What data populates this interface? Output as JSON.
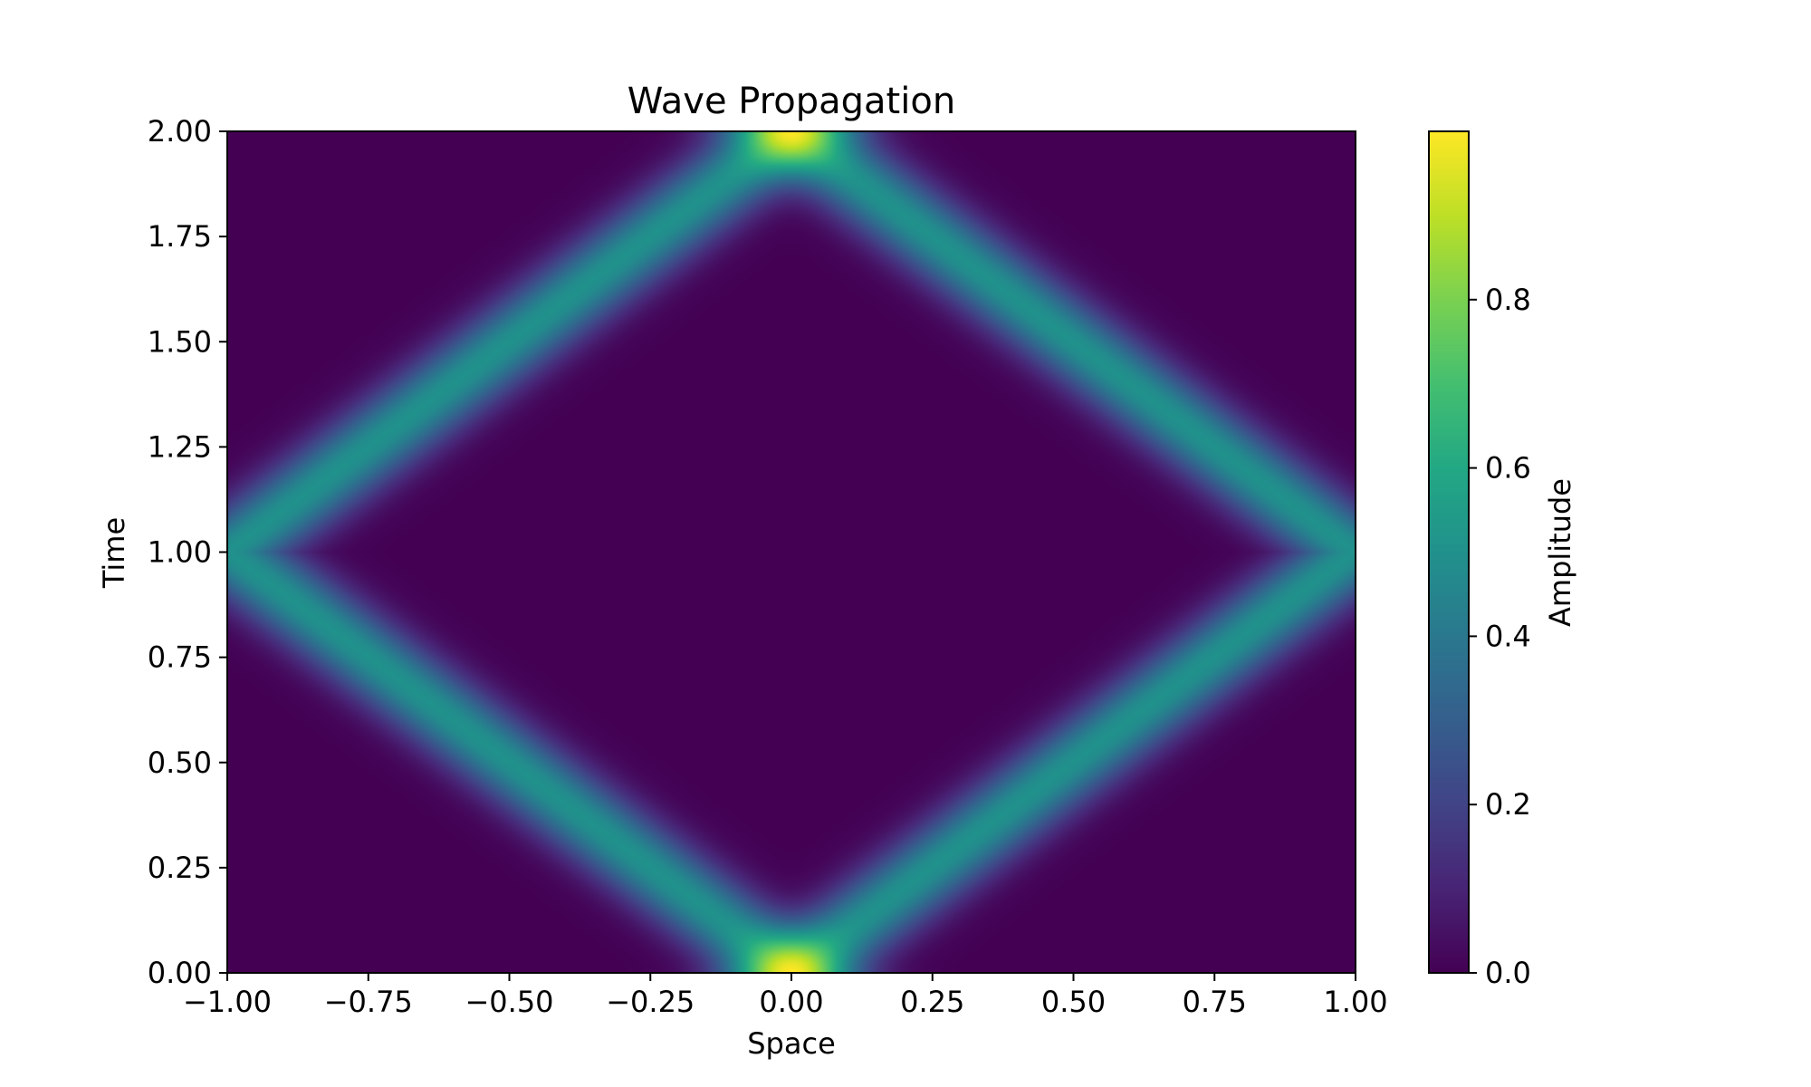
{
  "chart_data": {
    "type": "heatmap",
    "title": "Wave Propagation",
    "xlabel": "Space",
    "ylabel": "Time",
    "xlim": [
      -1.0,
      1.0
    ],
    "ylim": [
      0.0,
      2.0
    ],
    "x_ticks": [
      -1.0,
      -0.75,
      -0.5,
      -0.25,
      0.0,
      0.25,
      0.5,
      0.75,
      1.0
    ],
    "x_tick_labels": [
      "−1.00",
      "−0.75",
      "−0.50",
      "−0.25",
      "0.00",
      "0.25",
      "0.50",
      "0.75",
      "1.00"
    ],
    "y_ticks": [
      0.0,
      0.25,
      0.5,
      0.75,
      1.0,
      1.25,
      1.5,
      1.75,
      2.0
    ],
    "y_tick_labels": [
      "0.00",
      "0.25",
      "0.50",
      "0.75",
      "1.00",
      "1.25",
      "1.50",
      "1.75",
      "2.00"
    ],
    "field": {
      "description": "Amplitude of two Gaussian pulses travelling from x=0 at t=0 toward the walls, reflecting at t=1 and meeting again at x=0 at t=2",
      "pulse_center_t0": 0.0,
      "wave_speed": 1.0,
      "single_pulse_peak": 0.5,
      "overlap_peak": 1.0,
      "pulse_width": 0.08
    },
    "colorbar": {
      "label": "Amplitude",
      "colormap": "viridis",
      "range": [
        0.0,
        1.0
      ],
      "ticks": [
        0.0,
        0.2,
        0.4,
        0.6,
        0.8
      ],
      "tick_labels": [
        "0.0",
        "0.2",
        "0.4",
        "0.6",
        "0.8"
      ]
    }
  }
}
